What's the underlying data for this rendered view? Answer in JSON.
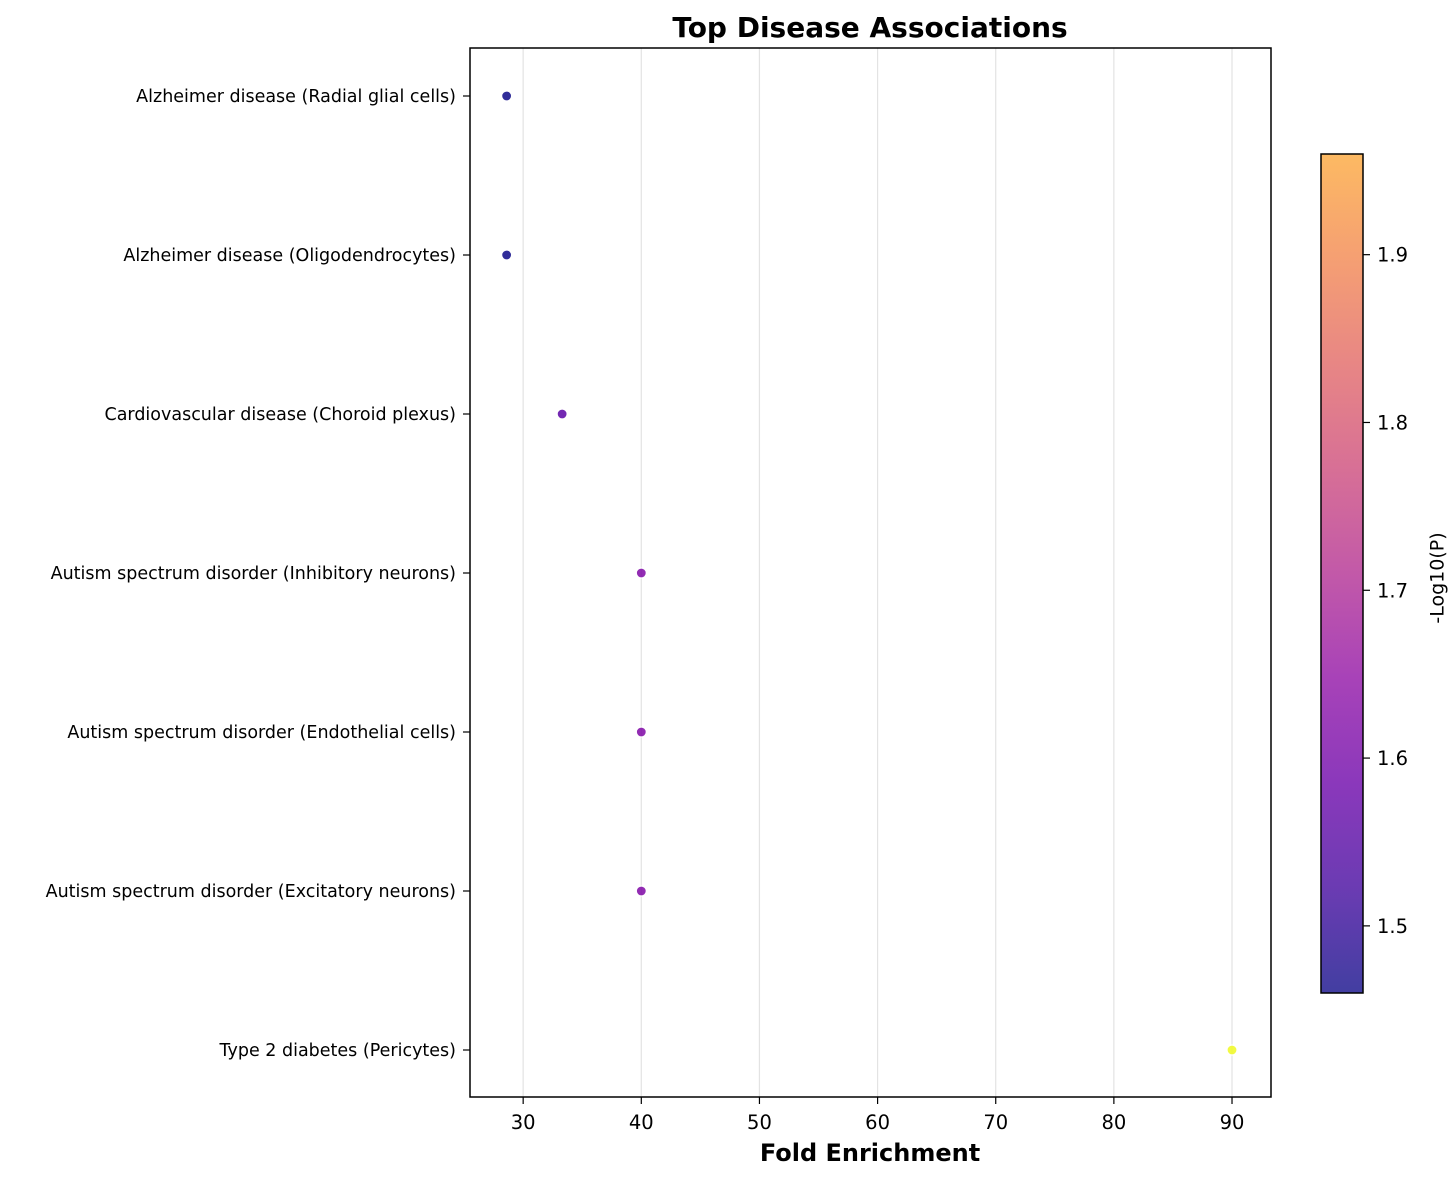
{
  "chart_data": {
    "type": "scatter",
    "title": "Top Disease Associations",
    "xlabel": "Fold Enrichment",
    "ylabel": "",
    "xlim": [
      25.5,
      93.3
    ],
    "xticks": [
      30,
      40,
      50,
      60,
      70,
      80,
      90
    ],
    "grid": "x-vertical",
    "categories": [
      "Alzheimer disease (Radial glial cells)",
      "Alzheimer disease (Oligodendrocytes)",
      "Cardiovascular disease (Choroid plexus)",
      "Autism spectrum disorder (Inhibitory neurons)",
      "Autism spectrum disorder (Endothelial cells)",
      "Autism spectrum disorder (Excitatory neurons)",
      "Type 2 diabetes (Pericytes)"
    ],
    "points": [
      {
        "category": "Alzheimer disease (Radial glial cells)",
        "x": 28.6,
        "color_value": 1.46
      },
      {
        "category": "Alzheimer disease (Oligodendrocytes)",
        "x": 28.6,
        "color_value": 1.46
      },
      {
        "category": "Cardiovascular disease (Choroid plexus)",
        "x": 33.3,
        "color_value": 1.56
      },
      {
        "category": "Autism spectrum disorder (Inhibitory neurons)",
        "x": 40.0,
        "color_value": 1.62
      },
      {
        "category": "Autism spectrum disorder (Endothelial cells)",
        "x": 40.0,
        "color_value": 1.62
      },
      {
        "category": "Autism spectrum disorder (Excitatory neurons)",
        "x": 40.0,
        "color_value": 1.62
      },
      {
        "category": "Type 2 diabetes (Pericytes)",
        "x": 90.0,
        "color_value": 1.96
      }
    ],
    "colorbar": {
      "label": "-Log10(P)",
      "colormap": "plasma",
      "range": [
        1.46,
        1.96
      ],
      "ticks": [
        1.5,
        1.6,
        1.7,
        1.8,
        1.9
      ]
    }
  }
}
